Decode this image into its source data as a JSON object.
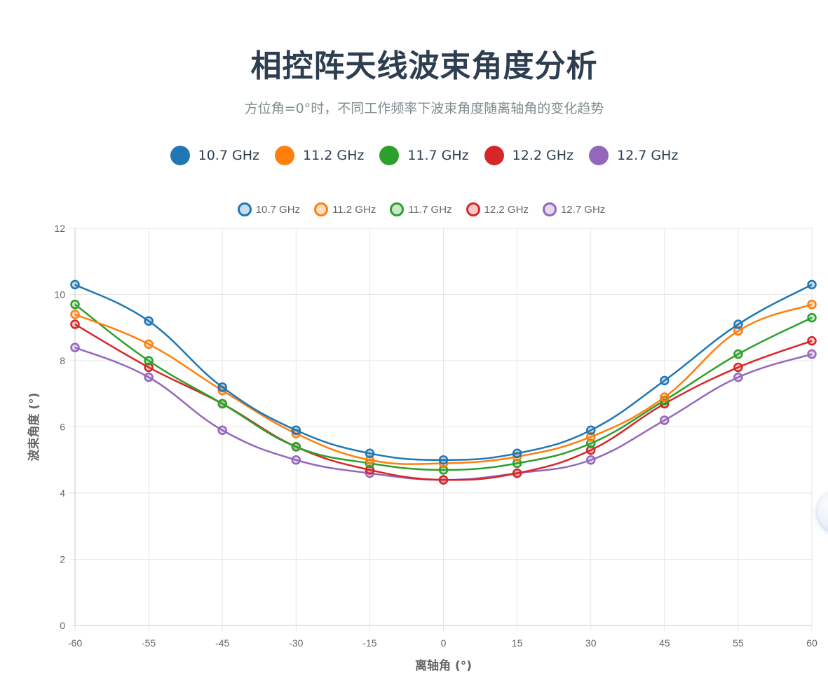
{
  "header": {
    "title": "相控阵天线波束角度分析",
    "subtitle": "方位角=0°时，不同工作频率下波束角度随离轴角的变化趋势"
  },
  "colors": {
    "10.7 GHz": "#1f77b4",
    "11.2 GHz": "#ff7f0e",
    "11.7 GHz": "#2ca02c",
    "12.2 GHz": "#d62728",
    "12.7 GHz": "#9467bd"
  },
  "legend_top": [
    {
      "label": "10.7 GHz"
    },
    {
      "label": "11.2 GHz"
    },
    {
      "label": "11.7 GHz"
    },
    {
      "label": "12.2 GHz"
    },
    {
      "label": "12.7 GHz"
    }
  ],
  "chart_data": {
    "type": "line",
    "categories": [
      "-60",
      "-55",
      "-45",
      "-30",
      "-15",
      "0",
      "15",
      "30",
      "45",
      "55",
      "60"
    ],
    "series": [
      {
        "name": "10.7 GHz",
        "values": [
          10.3,
          9.2,
          7.2,
          5.9,
          5.2,
          5.0,
          5.2,
          5.9,
          7.4,
          9.1,
          10.3
        ]
      },
      {
        "name": "11.2 GHz",
        "values": [
          9.4,
          8.5,
          7.1,
          5.8,
          5.0,
          4.9,
          5.1,
          5.7,
          6.9,
          8.9,
          9.7
        ]
      },
      {
        "name": "11.7 GHz",
        "values": [
          9.7,
          8.0,
          6.7,
          5.4,
          4.9,
          4.7,
          4.9,
          5.5,
          6.8,
          8.2,
          9.3
        ]
      },
      {
        "name": "12.2 GHz",
        "values": [
          9.1,
          7.8,
          6.7,
          5.4,
          4.7,
          4.4,
          4.6,
          5.3,
          6.7,
          7.8,
          8.6
        ]
      },
      {
        "name": "12.7 GHz",
        "values": [
          8.4,
          7.5,
          5.9,
          5.0,
          4.6,
          4.4,
          4.6,
          5.0,
          6.2,
          7.5,
          8.2
        ]
      }
    ],
    "xlabel": "离轴角 (°)",
    "ylabel": "波束角度 (°)",
    "ylim": [
      0,
      12
    ],
    "yticks": [
      "0",
      "2",
      "4",
      "6",
      "8",
      "10",
      "12"
    ],
    "grid": true,
    "legend": "top"
  }
}
